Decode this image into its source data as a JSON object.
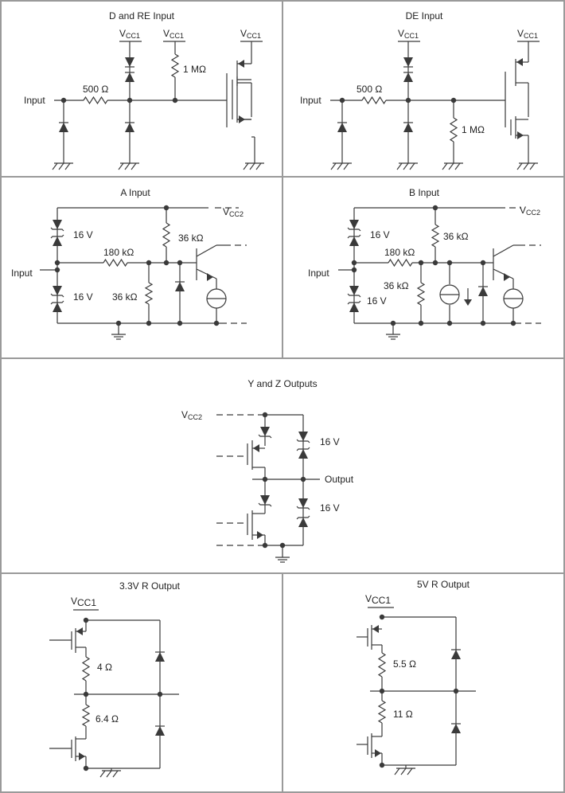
{
  "colors": {
    "wire": "#3a3a3a",
    "frame": "#9a9a9a",
    "background": "#ffffff"
  },
  "panels": {
    "d_re_input": {
      "title": "D and RE Input",
      "input": "Input",
      "r1": "500 Ω",
      "r2": "1 MΩ"
    },
    "de_input": {
      "title": "DE Input",
      "input": "Input",
      "r1": "500 Ω",
      "r2": "1 MΩ"
    },
    "a_input": {
      "title": "A Input",
      "input": "Input",
      "zener_top": "16 V",
      "zener_bottom": "16 V",
      "r_series": "180 kΩ",
      "r_pullup": "36 kΩ",
      "r_pulldown": "36 kΩ"
    },
    "b_input": {
      "title": "B Input",
      "input": "Input",
      "zener_top": "16 V",
      "zener_bottom": "16 V",
      "r_series": "180 kΩ",
      "r_pullup": "36 kΩ",
      "r_pulldown": "36 kΩ"
    },
    "yz_outputs": {
      "title": "Y and Z Outputs",
      "output": "Output",
      "zener_top": "16 V",
      "zener_bottom": "16 V"
    },
    "r_output_3v3": {
      "title": "3.3V R Output",
      "r_top": "4 Ω",
      "r_bottom": "6.4 Ω"
    },
    "r_output_5v": {
      "title": "5V R Output",
      "r_top": "5.5 Ω",
      "r_bottom": "11 Ω"
    }
  },
  "supply": {
    "v": "V",
    "vcc1_sub": "CC1",
    "vcc2_sub": "CC2"
  }
}
